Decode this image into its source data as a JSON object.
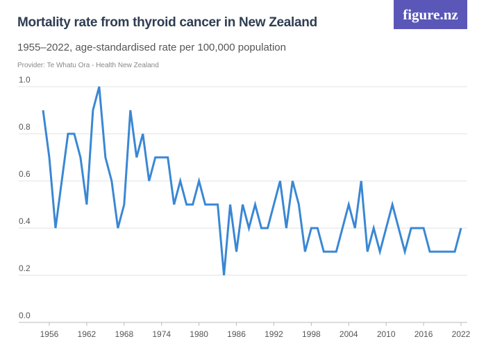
{
  "header": {
    "title": "Mortality rate from thyroid cancer in New Zealand",
    "subtitle": "1955–2022, age-standardised rate per 100,000 population",
    "provider": "Provider: Te Whatu Ora - Health New Zealand",
    "logo": "figure.nz"
  },
  "chart_data": {
    "type": "line",
    "title": "Mortality rate from thyroid cancer in New Zealand",
    "subtitle": "1955–2022, age-standardised rate per 100,000 population",
    "xlabel": "",
    "ylabel": "",
    "ylim": [
      0,
      1.0
    ],
    "xlim": [
      1955,
      2022
    ],
    "grid": true,
    "color": "#3a87d4",
    "yticks": [
      "0.0",
      "0.2",
      "0.4",
      "0.6",
      "0.8",
      "1.0"
    ],
    "xticks": [
      "1956",
      "1962",
      "1968",
      "1974",
      "1980",
      "1986",
      "1992",
      "1998",
      "2004",
      "2010",
      "2016",
      "2022"
    ],
    "x": [
      1955,
      1956,
      1957,
      1958,
      1959,
      1960,
      1961,
      1962,
      1963,
      1964,
      1965,
      1966,
      1967,
      1968,
      1969,
      1970,
      1971,
      1972,
      1973,
      1974,
      1975,
      1976,
      1977,
      1978,
      1979,
      1980,
      1981,
      1982,
      1983,
      1984,
      1985,
      1986,
      1987,
      1988,
      1989,
      1990,
      1991,
      1992,
      1993,
      1994,
      1995,
      1996,
      1997,
      1998,
      1999,
      2000,
      2001,
      2002,
      2003,
      2004,
      2005,
      2006,
      2007,
      2008,
      2009,
      2010,
      2011,
      2012,
      2013,
      2014,
      2015,
      2016,
      2017,
      2018,
      2019,
      2020,
      2021,
      2022
    ],
    "y": [
      0.9,
      0.7,
      0.4,
      0.6,
      0.8,
      0.8,
      0.7,
      0.5,
      0.9,
      1.0,
      0.7,
      0.6,
      0.4,
      0.5,
      0.9,
      0.7,
      0.8,
      0.6,
      0.7,
      0.7,
      0.7,
      0.5,
      0.6,
      0.5,
      0.5,
      0.6,
      0.5,
      0.5,
      0.5,
      0.2,
      0.5,
      0.3,
      0.5,
      0.4,
      0.5,
      0.4,
      0.4,
      0.5,
      0.6,
      0.4,
      0.6,
      0.5,
      0.3,
      0.4,
      0.4,
      0.3,
      0.3,
      0.3,
      0.4,
      0.5,
      0.4,
      0.6,
      0.3,
      0.4,
      0.3,
      0.4,
      0.5,
      0.4,
      0.3,
      0.4,
      0.4,
      0.4,
      0.3,
      0.3,
      0.3,
      0.3,
      0.3,
      0.4
    ]
  }
}
